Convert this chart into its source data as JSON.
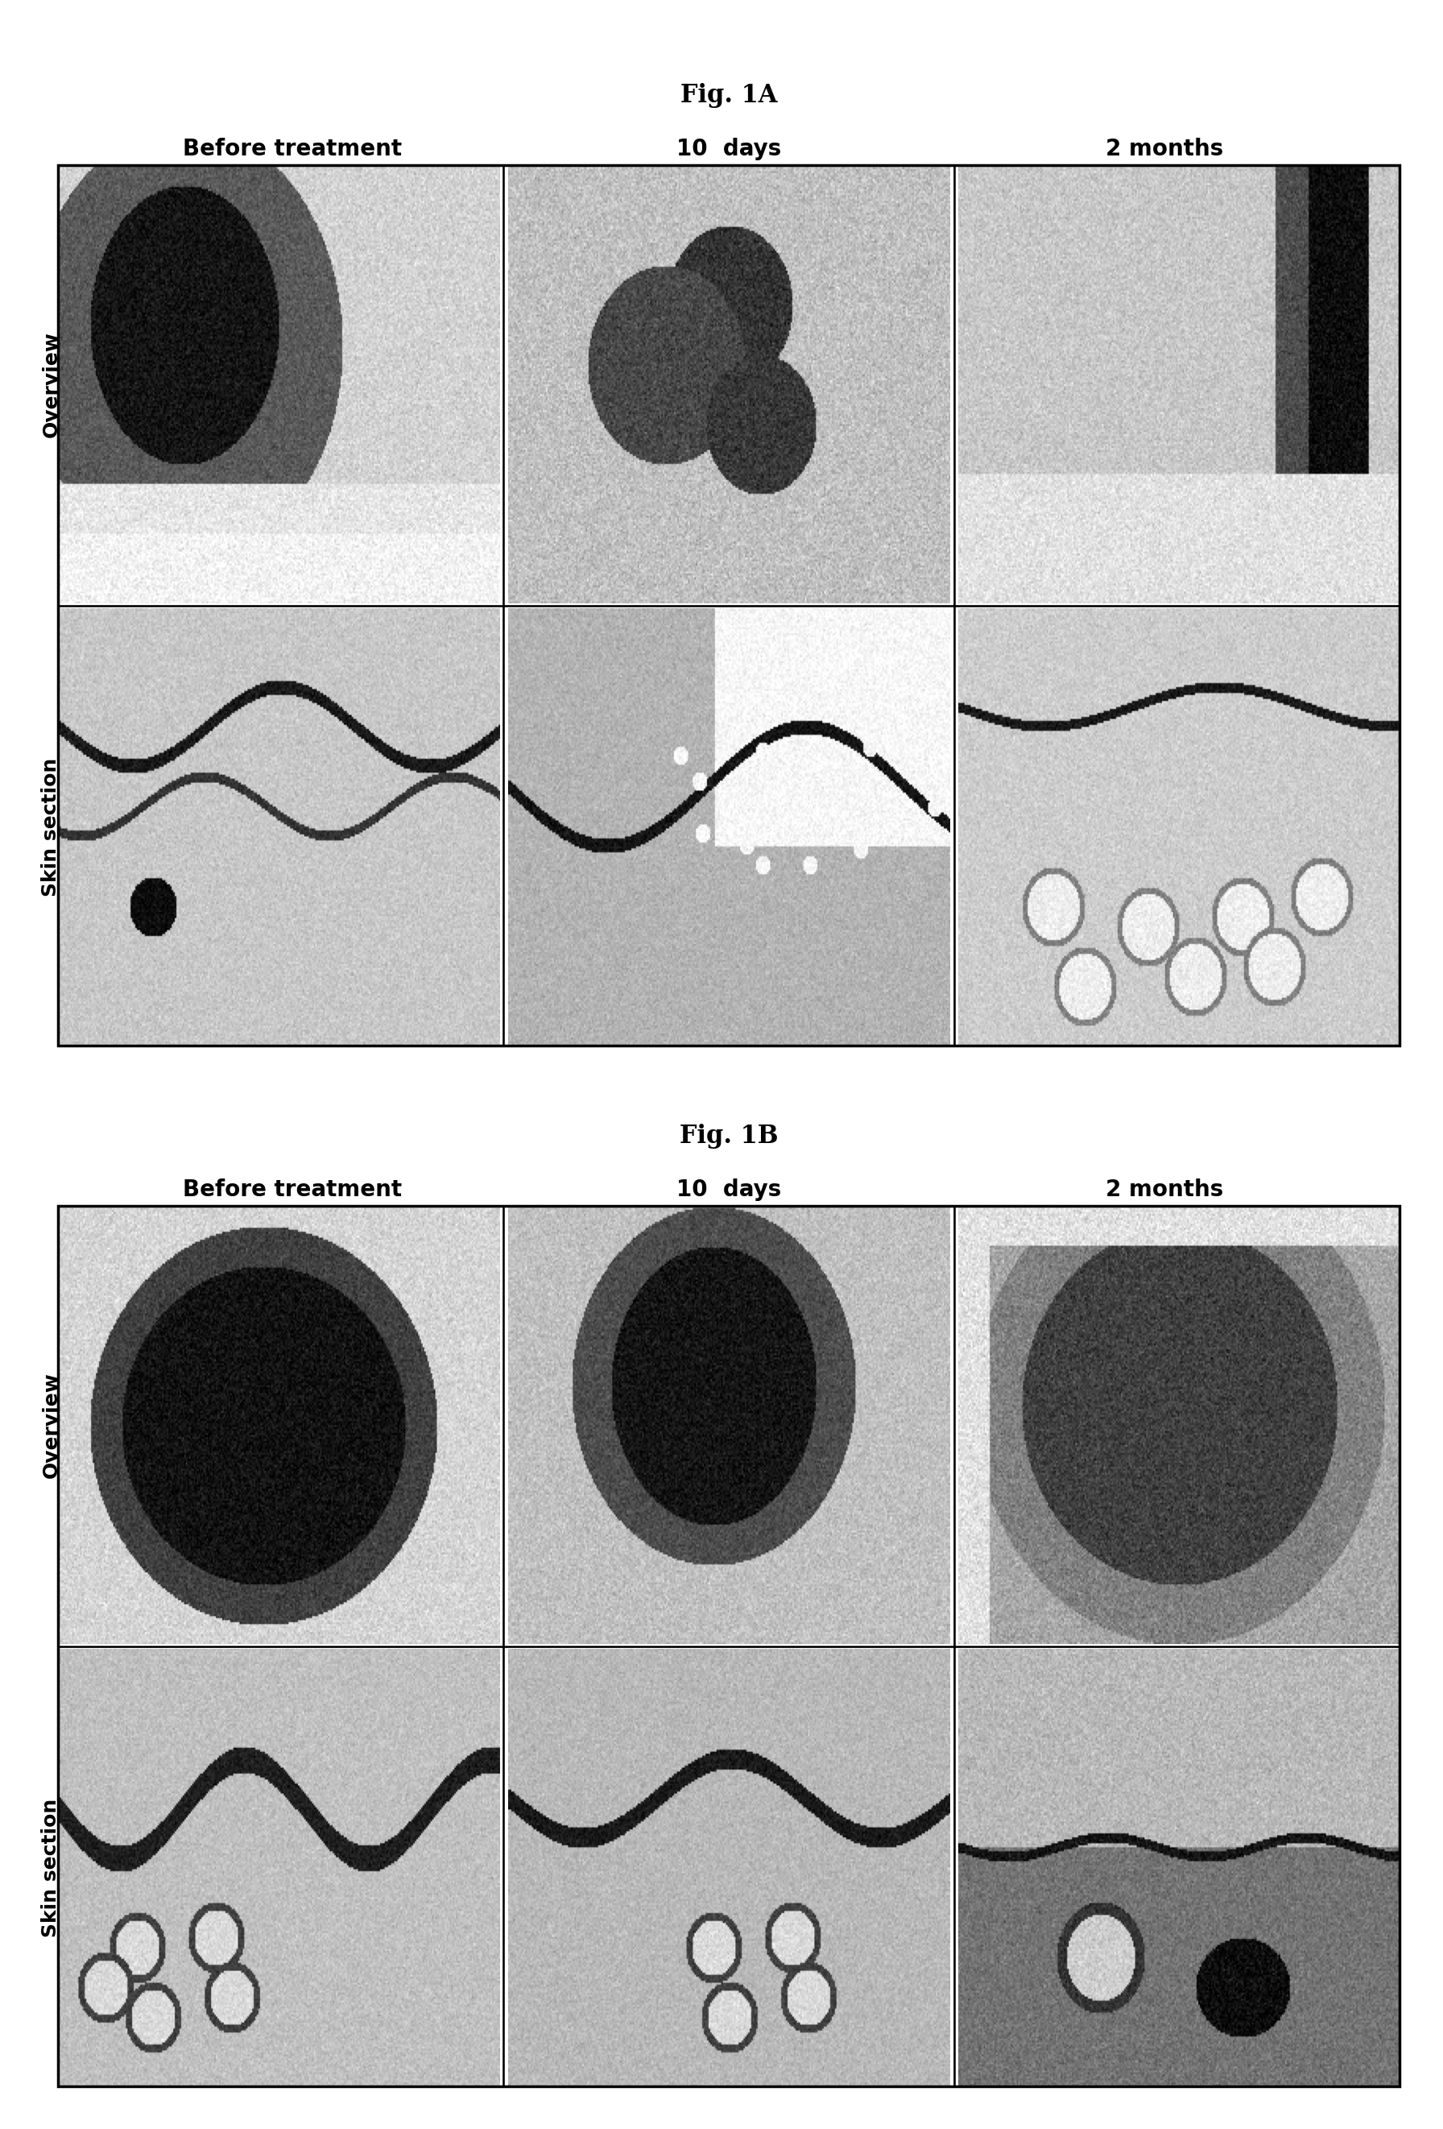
{
  "fig_a_title": "Fig. 1A",
  "fig_b_title": "Fig. 1B",
  "col_labels": [
    "Before treatment",
    "10  days",
    "2 months"
  ],
  "row_labels_a": [
    "Overview",
    "Skin section"
  ],
  "row_labels_b": [
    "Overview",
    "Skin section"
  ],
  "background_color": "#ffffff",
  "title_fontsize": 22,
  "col_label_fontsize": 20,
  "row_label_fontsize": 18,
  "border_color": "#000000",
  "border_linewidth": 2.5
}
